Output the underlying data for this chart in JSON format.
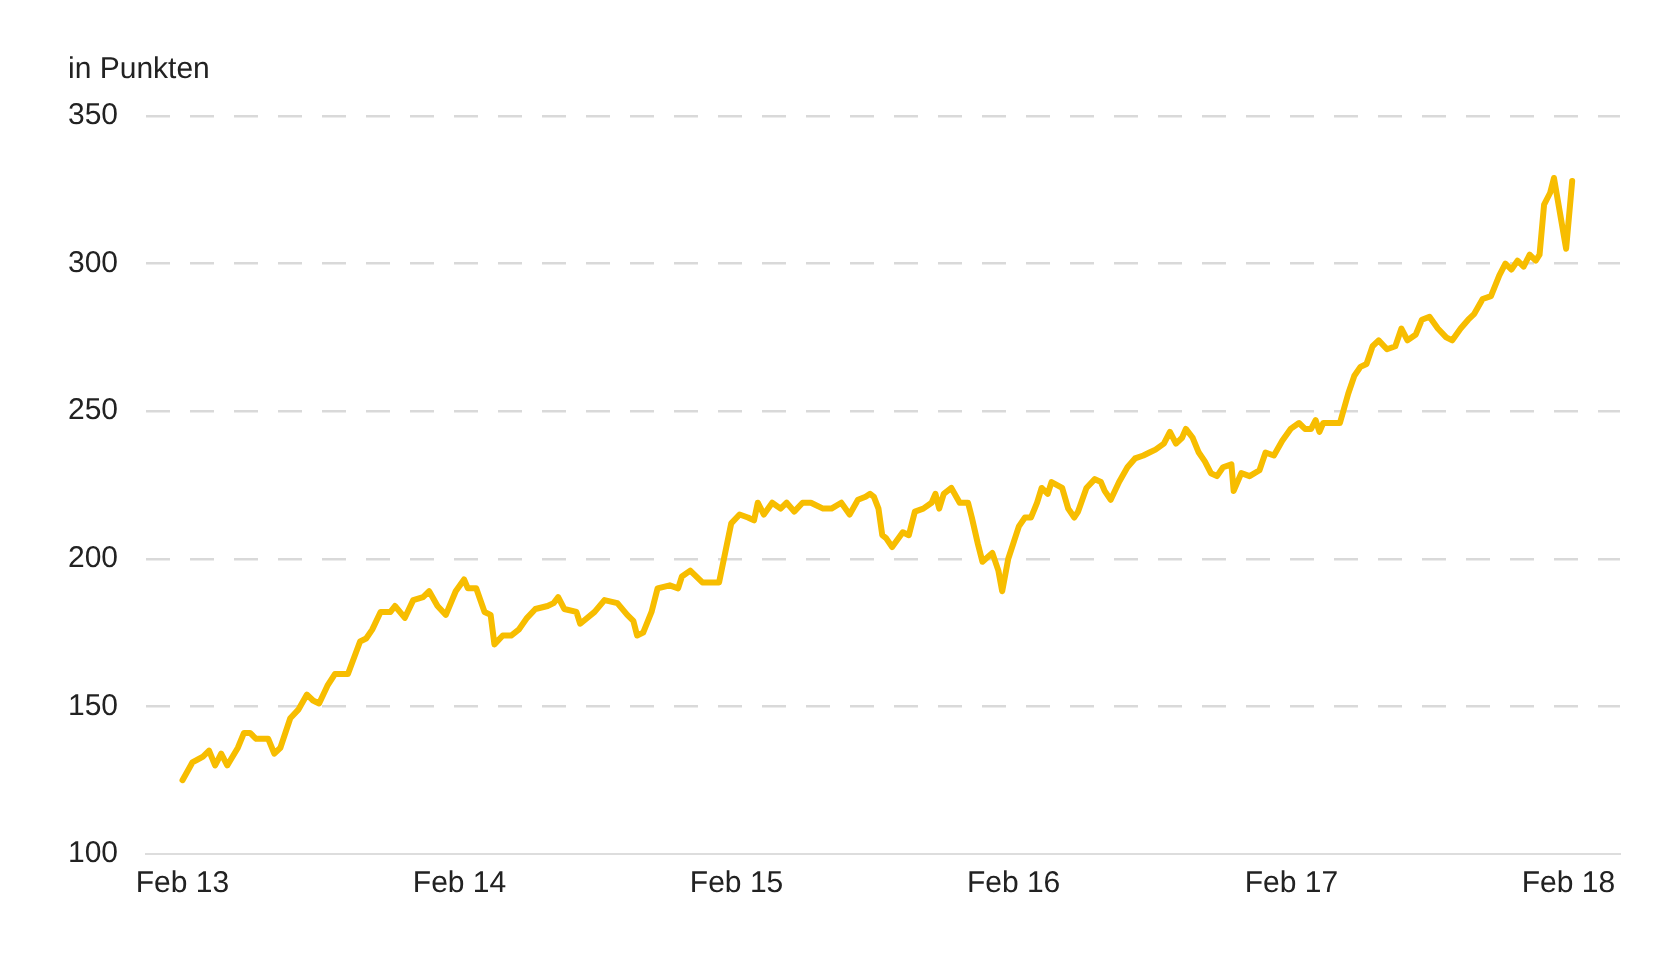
{
  "chart_data": {
    "type": "line",
    "ylabel": "in Punkten",
    "grid": "y",
    "marker": "none",
    "line_style": "solid",
    "xlim": [
      "2012-12-15",
      "2018-04-10"
    ],
    "xticks": [
      {
        "value": "2013-02-01",
        "label": "Feb 13"
      },
      {
        "value": "2014-02-01",
        "label": "Feb 14"
      },
      {
        "value": "2015-02-01",
        "label": "Feb 15"
      },
      {
        "value": "2016-02-01",
        "label": "Feb 16"
      },
      {
        "value": "2017-02-01",
        "label": "Feb 17"
      },
      {
        "value": "2018-02-01",
        "label": "Feb 18"
      }
    ],
    "ylim": [
      100,
      350
    ],
    "yticks": [
      100,
      150,
      200,
      250,
      300,
      350
    ],
    "x": [
      "2013-02-01",
      "2013-02-14",
      "2013-02-28",
      "2013-03-08",
      "2013-03-16",
      "2013-03-24",
      "2013-04-01",
      "2013-04-15",
      "2013-04-23",
      "2013-05-01",
      "2013-05-09",
      "2013-05-25",
      "2013-06-02",
      "2013-06-10",
      "2013-06-23",
      "2013-07-04",
      "2013-07-15",
      "2013-07-23",
      "2013-07-31",
      "2013-08-11",
      "2013-08-21",
      "2013-09-07",
      "2013-09-23",
      "2013-10-01",
      "2013-10-09",
      "2013-10-20",
      "2013-11-02",
      "2013-11-08",
      "2013-11-21",
      "2013-12-02",
      "2013-12-15",
      "2013-12-23",
      "2014-01-03",
      "2014-01-14",
      "2014-01-27",
      "2014-02-07",
      "2014-02-12",
      "2014-02-23",
      "2014-03-06",
      "2014-03-14",
      "2014-03-19",
      "2014-03-30",
      "2014-04-10",
      "2014-04-20",
      "2014-05-01",
      "2014-05-12",
      "2014-05-28",
      "2014-06-05",
      "2014-06-11",
      "2014-06-19",
      "2014-07-05",
      "2014-07-10",
      "2014-07-29",
      "2014-08-11",
      "2014-08-28",
      "2014-09-10",
      "2014-09-18",
      "2014-09-23",
      "2014-10-01",
      "2014-10-12",
      "2014-10-20",
      "2014-11-05",
      "2014-11-16",
      "2014-11-21",
      "2014-12-02",
      "2014-12-18",
      "2014-12-29",
      "2015-01-09",
      "2015-01-25",
      "2015-02-05",
      "2015-02-16",
      "2015-02-24",
      "2015-03-01",
      "2015-03-09",
      "2015-03-20",
      "2015-03-31",
      "2015-04-08",
      "2015-04-18",
      "2015-04-29",
      "2015-05-10",
      "2015-05-26",
      "2015-06-06",
      "2015-06-19",
      "2015-06-30",
      "2015-07-11",
      "2015-07-21",
      "2015-07-27",
      "2015-08-01",
      "2015-08-07",
      "2015-08-12",
      "2015-08-17",
      "2015-08-25",
      "2015-09-08",
      "2015-09-16",
      "2015-09-24",
      "2015-10-05",
      "2015-10-16",
      "2015-10-21",
      "2015-10-26",
      "2015-11-01",
      "2015-11-11",
      "2015-11-22",
      "2015-12-03",
      "2015-12-08",
      "2015-12-16",
      "2015-12-22",
      "2016-01-04",
      "2016-01-12",
      "2016-01-17",
      "2016-01-25",
      "2016-02-08",
      "2016-02-16",
      "2016-02-24",
      "2016-03-03",
      "2016-03-09",
      "2016-03-17",
      "2016-03-22",
      "2016-04-05",
      "2016-04-13",
      "2016-04-21",
      "2016-04-26",
      "2016-05-07",
      "2016-05-18",
      "2016-05-26",
      "2016-05-31",
      "2016-06-08",
      "2016-06-19",
      "2016-06-30",
      "2016-07-10",
      "2016-07-21",
      "2016-07-29",
      "2016-08-06",
      "2016-08-17",
      "2016-08-25",
      "2016-09-02",
      "2016-09-10",
      "2016-09-15",
      "2016-09-24",
      "2016-10-02",
      "2016-10-10",
      "2016-10-18",
      "2016-10-26",
      "2016-11-03",
      "2016-11-14",
      "2016-11-17",
      "2016-11-27",
      "2016-12-08",
      "2016-12-21",
      "2016-12-29",
      "2017-01-09",
      "2017-01-20",
      "2017-01-31",
      "2017-02-11",
      "2017-02-19",
      "2017-02-27",
      "2017-03-05",
      "2017-03-10",
      "2017-03-15",
      "2017-03-26",
      "2017-04-06",
      "2017-04-17",
      "2017-04-25",
      "2017-05-03",
      "2017-05-11",
      "2017-05-19",
      "2017-05-27",
      "2017-06-07",
      "2017-06-18",
      "2017-06-26",
      "2017-07-04",
      "2017-07-15",
      "2017-07-23",
      "2017-08-02",
      "2017-08-13",
      "2017-08-24",
      "2017-09-01",
      "2017-09-12",
      "2017-09-22",
      "2017-09-30",
      "2017-10-11",
      "2017-10-22",
      "2017-11-02",
      "2017-11-10",
      "2017-11-18",
      "2017-11-26",
      "2017-12-04",
      "2017-12-12",
      "2017-12-20",
      "2017-12-25",
      "2017-12-31",
      "2018-01-08",
      "2018-01-13",
      "2018-01-29",
      "2018-02-06"
    ],
    "series": [
      {
        "color": "#f7bd00",
        "values": [
          125,
          131,
          133,
          135,
          130,
          134,
          130,
          136,
          141,
          141,
          139,
          139,
          134,
          136,
          146,
          149,
          154,
          152,
          151,
          157,
          161,
          161,
          172,
          173,
          176,
          182,
          182,
          184,
          180,
          186,
          187,
          189,
          184,
          181,
          189,
          193,
          190,
          190,
          182,
          181,
          171,
          174,
          174,
          176,
          180,
          183,
          184,
          185,
          187,
          183,
          182,
          178,
          182,
          186,
          185,
          181,
          179,
          174,
          175,
          182,
          190,
          191,
          190,
          194,
          196,
          192,
          192,
          192,
          212,
          215,
          214,
          213,
          219,
          215,
          219,
          217,
          219,
          216,
          219,
          219,
          217,
          217,
          219,
          215,
          220,
          221,
          222,
          221,
          217,
          208,
          207,
          204,
          209,
          208,
          216,
          217,
          219,
          222,
          217,
          222,
          224,
          219,
          219,
          214,
          205,
          199,
          202,
          196,
          189,
          200,
          211,
          214,
          214,
          219,
          224,
          222,
          226,
          224,
          217,
          214,
          216,
          224,
          227,
          226,
          223,
          220,
          226,
          231,
          234,
          235,
          236,
          237,
          239,
          243,
          239,
          241,
          244,
          241,
          236,
          233,
          229,
          228,
          231,
          232,
          223,
          229,
          228,
          230,
          236,
          235,
          240,
          244,
          246,
          244,
          244,
          247,
          243,
          246,
          246,
          246,
          256,
          262,
          265,
          266,
          272,
          274,
          271,
          272,
          278,
          274,
          276,
          281,
          282,
          278,
          275,
          274,
          278,
          281,
          283,
          288,
          289,
          296,
          300,
          298,
          301,
          299,
          303,
          301,
          303,
          320,
          324,
          329,
          305,
          328
        ]
      }
    ]
  }
}
